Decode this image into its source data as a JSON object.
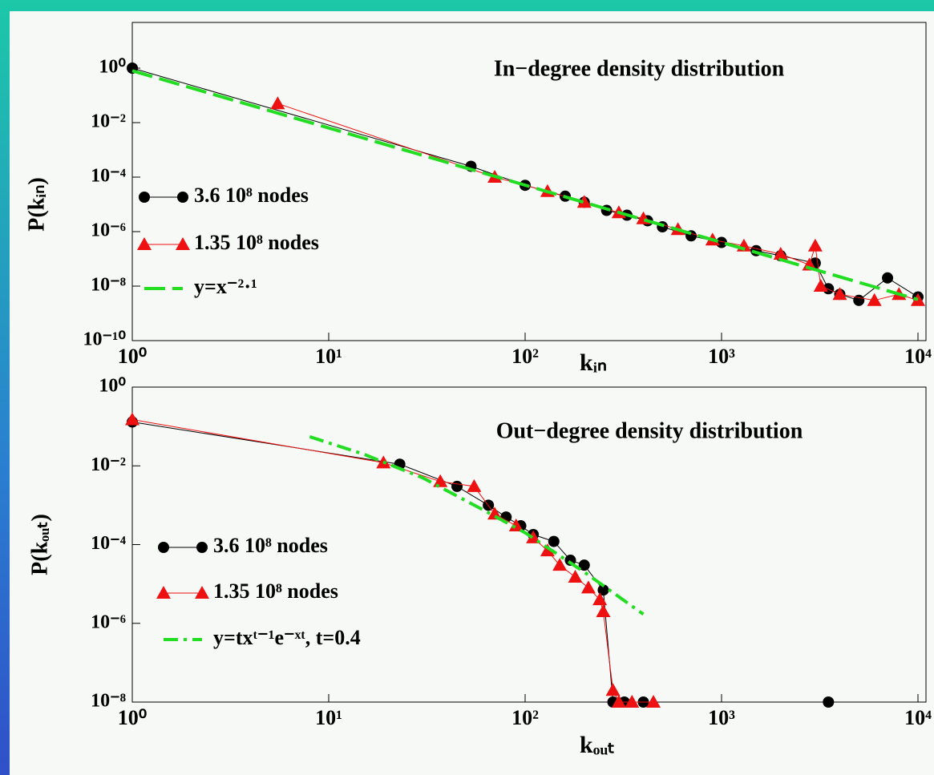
{
  "chart_data": [
    {
      "type": "line",
      "title": "In−degree density distribution",
      "x_label": "kᵢₙ",
      "y_label": "P(kᵢₙ)",
      "xscale": "log",
      "yscale": "log",
      "legend": "left",
      "xlim": [
        1,
        10000
      ],
      "ylim": [
        1e-10,
        1
      ],
      "xticks": [
        {
          "value": 1,
          "label": "10⁰"
        },
        {
          "value": 10,
          "label": "10¹"
        },
        {
          "value": 100,
          "label": "10²"
        },
        {
          "value": 1000,
          "label": "10³"
        },
        {
          "value": 10000,
          "label": "10⁴"
        }
      ],
      "yticks": [
        {
          "value": 1,
          "label": "10⁰"
        },
        {
          "value": 0.01,
          "label": "10⁻²"
        },
        {
          "value": 0.0001,
          "label": "10⁻⁴"
        },
        {
          "value": 1e-06,
          "label": "10⁻⁶"
        },
        {
          "value": 1e-08,
          "label": "10⁻⁸"
        },
        {
          "value": 1e-10,
          "label": "10⁻¹⁰"
        }
      ],
      "series": [
        {
          "name": "3.6 10⁸ nodes",
          "color": "#000000",
          "marker": "circle",
          "x": [
            1,
            53,
            100,
            160,
            200,
            260,
            330,
            420,
            500,
            700,
            1000,
            1500,
            2000,
            3000,
            3500,
            4000,
            5000,
            7000,
            10000
          ],
          "values": [
            1,
            0.00025,
            5e-05,
            2e-05,
            1.2e-05,
            6e-06,
            4e-06,
            2.5e-06,
            1.5e-06,
            7e-07,
            4e-07,
            2e-07,
            1.3e-07,
            7e-08,
            8e-09,
            5e-09,
            3e-09,
            2e-08,
            4e-09
          ]
        },
        {
          "name": "1.35 10⁸ nodes",
          "color": "#ee1111",
          "marker": "triangle",
          "x": [
            5.5,
            70,
            130,
            200,
            300,
            400,
            600,
            900,
            1300,
            2000,
            2800,
            3000,
            3200,
            4000,
            6000,
            8000,
            10000
          ],
          "values": [
            0.05,
            0.0001,
            3e-05,
            1.2e-05,
            5e-06,
            3e-06,
            1.2e-06,
            5e-07,
            3e-07,
            1.5e-07,
            6e-08,
            3e-07,
            1e-08,
            5e-09,
            3e-09,
            5e-09,
            3e-09
          ]
        },
        {
          "name": "y=x⁻²·¹",
          "color": "#22dd22",
          "marker": "none",
          "dash": "26,9",
          "x": [
            1,
            10000
          ],
          "values": [
            0.8,
            3.2e-09
          ]
        }
      ]
    },
    {
      "type": "line",
      "title": "Out−degree density distribution",
      "x_label": "kₒᵤₜ",
      "y_label": "P(kₒᵤₜ)",
      "xscale": "log",
      "yscale": "log",
      "legend": "left",
      "xlim": [
        1,
        10000
      ],
      "ylim": [
        1e-08,
        1
      ],
      "xticks": [
        {
          "value": 1,
          "label": "10⁰"
        },
        {
          "value": 10,
          "label": "10¹"
        },
        {
          "value": 100,
          "label": "10²"
        },
        {
          "value": 1000,
          "label": "10³"
        },
        {
          "value": 10000,
          "label": "10⁴"
        }
      ],
      "yticks": [
        {
          "value": 1,
          "label": "10⁰"
        },
        {
          "value": 0.01,
          "label": "10⁻²"
        },
        {
          "value": 0.0001,
          "label": "10⁻⁴"
        },
        {
          "value": 1e-06,
          "label": "10⁻⁶"
        },
        {
          "value": 1e-08,
          "label": "10⁻⁸"
        }
      ],
      "series": [
        {
          "name": "3.6 10⁸ nodes",
          "color": "#000000",
          "marker": "circle",
          "x": [
            1,
            23,
            45,
            65,
            80,
            95,
            110,
            140,
            170,
            200,
            250,
            280,
            320,
            400,
            3500
          ],
          "values": [
            0.13,
            0.011,
            0.003,
            0.001,
            0.0005,
            0.0003,
            0.00018,
            0.00012,
            4e-05,
            3e-05,
            7e-06,
            1e-08,
            1e-08,
            1e-08,
            1e-08
          ]
        },
        {
          "name": "1.35 10⁸ nodes",
          "color": "#ee1111",
          "marker": "triangle",
          "x": [
            1,
            19,
            37,
            55,
            70,
            90,
            110,
            130,
            150,
            180,
            210,
            240,
            250,
            280,
            300,
            350,
            450
          ],
          "values": [
            0.15,
            0.012,
            0.004,
            0.003,
            0.0006,
            0.0003,
            0.00015,
            7e-05,
            3e-05,
            1.5e-05,
            8e-06,
            4e-06,
            2e-06,
            2e-08,
            1e-08,
            1e-08,
            1e-08
          ]
        },
        {
          "name": "y=txᵗ⁻¹e⁻ˣᵗ, t=0.4",
          "color": "#22dd22",
          "marker": "none",
          "dash": "18,7,4,7",
          "x": [
            8,
            15,
            30,
            60,
            100,
            200,
            400
          ],
          "values": [
            0.055,
            0.02,
            0.005,
            0.0008,
            0.0002,
            2e-05,
            1.7e-06
          ]
        }
      ]
    }
  ]
}
